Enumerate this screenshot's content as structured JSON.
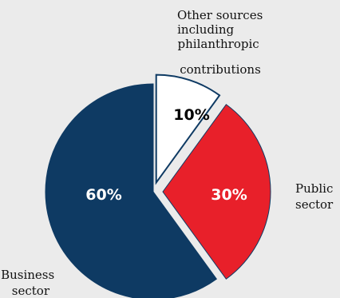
{
  "chart_data": {
    "type": "pie",
    "slices": [
      {
        "category": "Business sector",
        "label_lines": [
          "Business",
          "sector"
        ],
        "value": 60,
        "value_label": "60%",
        "color": "#0e3a63",
        "label_color": "#ffffff",
        "exploded": false
      },
      {
        "category": "Other sources including philanthropic contributions",
        "label_lines": [
          "Other sources",
          "including",
          "philanthropic",
          "contributions"
        ],
        "value": 10,
        "value_label": "10%",
        "color": "#ffffff",
        "label_color": "#000000",
        "exploded": true
      },
      {
        "category": "Public sector",
        "label_lines": [
          "Public",
          "sector"
        ],
        "value": 30,
        "value_label": "30%",
        "color": "#e8202a",
        "label_color": "#ffffff",
        "exploded": true
      }
    ],
    "background_color": "#ebebeb",
    "slice_outline_color": "#0e3a63"
  }
}
